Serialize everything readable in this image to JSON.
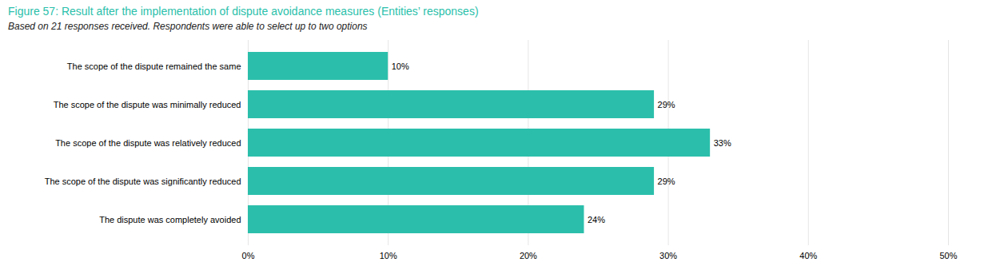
{
  "chart_data": {
    "type": "bar",
    "orientation": "horizontal",
    "title": "Figure 57: Result after the implementation of dispute avoidance measures (Entities’ responses)",
    "subtitle": "Based on 21 responses received. Respondents were able to select up to two options",
    "categories": [
      "The scope of the dispute remained the same",
      "The scope of the dispute was minimally reduced",
      "The scope of the dispute was relatively reduced",
      "The scope of the dispute was significantly reduced",
      "The dispute was completely avoided"
    ],
    "values": [
      10,
      29,
      33,
      29,
      24
    ],
    "value_labels": [
      "10%",
      "29%",
      "33%",
      "29%",
      "24%"
    ],
    "data_labels": true,
    "color": "#2BBFAB",
    "xlim": [
      0,
      50
    ],
    "xticks": [
      {
        "value": 0,
        "label": "0%"
      },
      {
        "value": 10,
        "label": "10%"
      },
      {
        "value": 20,
        "label": "20%"
      },
      {
        "value": 30,
        "label": "30%"
      },
      {
        "value": 40,
        "label": "40%"
      },
      {
        "value": 50,
        "label": "50%"
      }
    ],
    "grid": true
  }
}
